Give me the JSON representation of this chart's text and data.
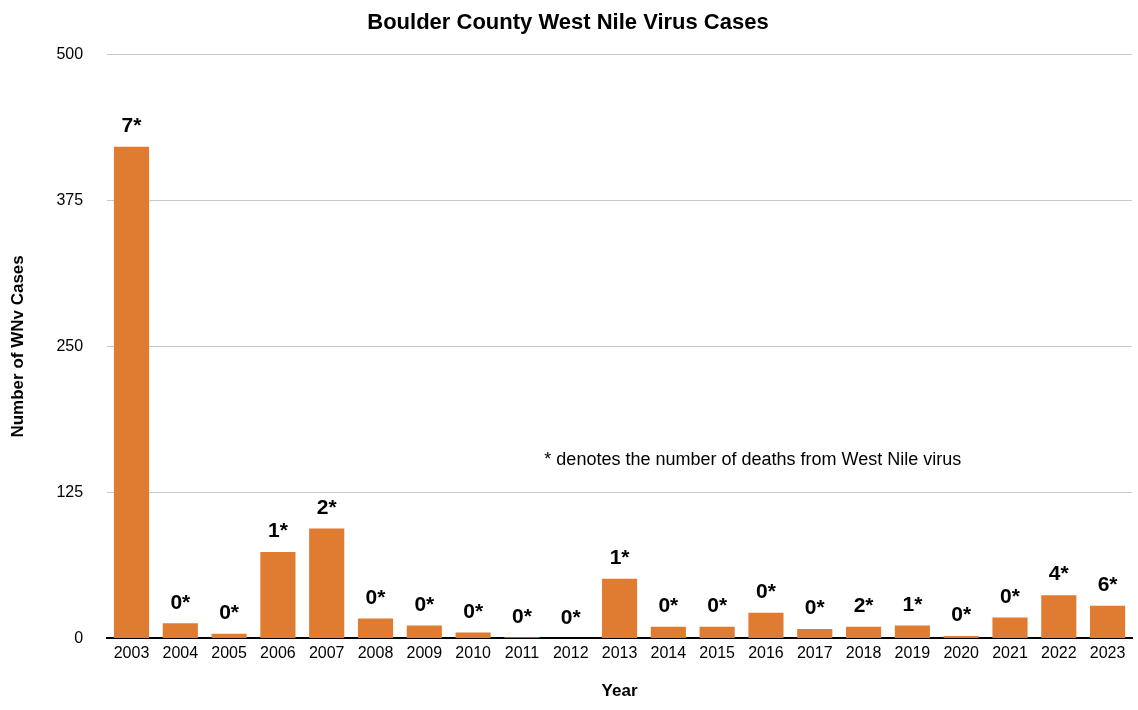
{
  "chart_data": {
    "type": "bar",
    "title": "Boulder County West Nile Virus Cases",
    "xlabel": "Year",
    "ylabel": "Number of WNv Cases",
    "categories": [
      "2003",
      "2004",
      "2005",
      "2006",
      "2007",
      "2008",
      "2009",
      "2010",
      "2011",
      "2012",
      "2013",
      "2014",
      "2015",
      "2016",
      "2017",
      "2018",
      "2019",
      "2020",
      "2021",
      "2022",
      "2023"
    ],
    "series": [
      {
        "color": "#e07b32",
        "values": [
          421,
          13,
          4,
          74,
          94,
          17,
          11,
          5,
          1,
          0,
          51,
          10,
          10,
          22,
          8,
          10,
          11,
          2,
          18,
          37,
          28
        ]
      }
    ],
    "ylim": [
      0,
      500
    ],
    "yticks": [
      0,
      125,
      250,
      375,
      500
    ],
    "grid": "y",
    "legend": false,
    "annotations": [
      "* denotes the number of deaths from West Nile virus",
      {
        "text": "7*",
        "x": "2003",
        "y": 421
      },
      {
        "text": "0*",
        "x": "2004",
        "y": 13
      },
      {
        "text": "0*",
        "x": "2005",
        "y": 4
      },
      {
        "text": "1*",
        "x": "2006",
        "y": 74
      },
      {
        "text": "2*",
        "x": "2007",
        "y": 94
      },
      {
        "text": "0*",
        "x": "2008",
        "y": 17
      },
      {
        "text": "0*",
        "x": "2009",
        "y": 11
      },
      {
        "text": "0*",
        "x": "2010",
        "y": 5
      },
      {
        "text": "0*",
        "x": "2011",
        "y": 1
      },
      {
        "text": "0*",
        "x": "2012",
        "y": 0
      },
      {
        "text": "1*",
        "x": "2013",
        "y": 51
      },
      {
        "text": "0*",
        "x": "2014",
        "y": 10
      },
      {
        "text": "0*",
        "x": "2015",
        "y": 10
      },
      {
        "text": "0*",
        "x": "2016",
        "y": 22
      },
      {
        "text": "0*",
        "x": "2017",
        "y": 8
      },
      {
        "text": "2*",
        "x": "2018",
        "y": 10
      },
      {
        "text": "1*",
        "x": "2019",
        "y": 11
      },
      {
        "text": "0*",
        "x": "2020",
        "y": 2
      },
      {
        "text": "0*",
        "x": "2021",
        "y": 18
      },
      {
        "text": "4*",
        "x": "2022",
        "y": 37
      },
      {
        "text": "6*",
        "x": "2023",
        "y": 28
      }
    ]
  }
}
